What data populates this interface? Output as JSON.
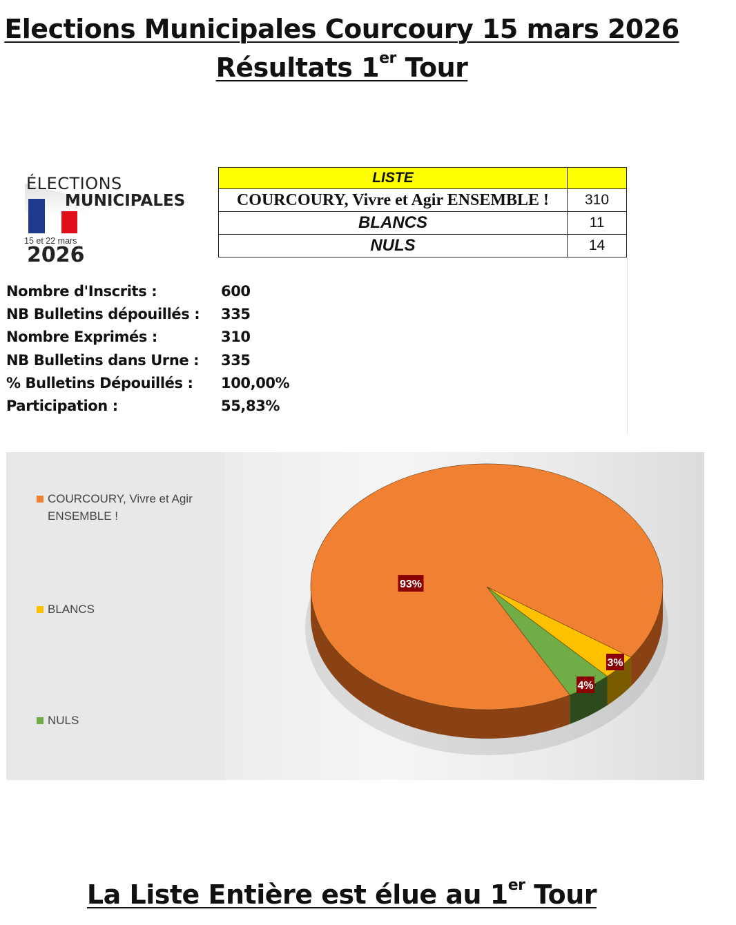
{
  "header": {
    "title_line1": "Elections Municipales Courcoury 15 mars 2026",
    "title_line2_main": "Résultats 1",
    "title_line2_sup": "er",
    "title_line2_end": " Tour"
  },
  "logo": {
    "line1": "ÉLECTIONS",
    "line2": "MUNICIPALES",
    "dates": "15 et 22 mars",
    "year": "2026"
  },
  "results_table": {
    "header": "LISTE",
    "rows": [
      {
        "name": "COURCOURY, Vivre et Agir ENSEMBLE !",
        "votes": "310"
      },
      {
        "name": "BLANCS",
        "votes": "11"
      },
      {
        "name": "NULS",
        "votes": "14"
      }
    ]
  },
  "stats": [
    {
      "label": "Nombre d'Inscrits :",
      "value": "600"
    },
    {
      "label": "NB Bulletins dépouillés :",
      "value": "335"
    },
    {
      "label": "Nombre Exprimés :",
      "value": "310"
    },
    {
      "label": "NB Bulletins dans Urne :",
      "value": "335"
    },
    {
      "label": "% Bulletins Dépouillés :",
      "value": "100,00%"
    },
    {
      "label": "Participation :",
      "value": "55,83%"
    }
  ],
  "chart_data": {
    "type": "pie",
    "style": "3d",
    "legend_position": "left",
    "categories": [
      "COURCOURY, Vivre et Agir ENSEMBLE !",
      "BLANCS",
      "NULS"
    ],
    "values": [
      310,
      11,
      14
    ],
    "data_labels": [
      "93%",
      "3%",
      "4%"
    ],
    "colors": [
      "#f08132",
      "#ffc000",
      "#70ad47"
    ],
    "label_bg": "#8b0000"
  },
  "footer": {
    "main": "La Liste Entière est élue au 1",
    "sup": "er",
    "end": " Tour"
  }
}
